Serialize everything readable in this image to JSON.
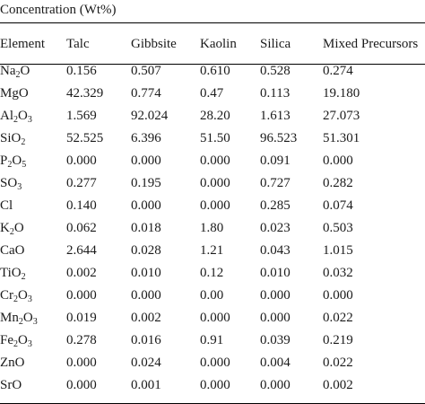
{
  "caption": "Concentration (Wt%)",
  "columns": [
    "Element",
    "Talc",
    "Gibbsite",
    "Kaolin",
    "Silica",
    "Mixed Precursors"
  ],
  "rows": [
    {
      "element": [
        [
          "Na",
          ""
        ],
        [
          "2",
          "sub"
        ],
        [
          "O",
          ""
        ]
      ],
      "values": [
        "0.156",
        "0.507",
        "0.610",
        "0.528",
        "0.274"
      ]
    },
    {
      "element": [
        [
          "MgO",
          ""
        ]
      ],
      "values": [
        "42.329",
        "0.774",
        "0.47",
        "0.113",
        "19.180"
      ]
    },
    {
      "element": [
        [
          "Al",
          ""
        ],
        [
          "2",
          "sub"
        ],
        [
          "O",
          ""
        ],
        [
          "3",
          "sub"
        ]
      ],
      "values": [
        "1.569",
        "92.024",
        "28.20",
        "1.613",
        "27.073"
      ]
    },
    {
      "element": [
        [
          "SiO",
          ""
        ],
        [
          "2",
          "sub"
        ]
      ],
      "values": [
        "52.525",
        "6.396",
        "51.50",
        "96.523",
        "51.301"
      ]
    },
    {
      "element": [
        [
          "P",
          ""
        ],
        [
          "2",
          "sub"
        ],
        [
          "O",
          ""
        ],
        [
          "5",
          "sub"
        ]
      ],
      "values": [
        "0.000",
        "0.000",
        "0.000",
        "0.091",
        "0.000"
      ]
    },
    {
      "element": [
        [
          "SO",
          ""
        ],
        [
          "3",
          "sub"
        ]
      ],
      "values": [
        "0.277",
        "0.195",
        "0.000",
        "0.727",
        "0.282"
      ]
    },
    {
      "element": [
        [
          "Cl",
          ""
        ]
      ],
      "values": [
        "0.140",
        "0.000",
        "0.000",
        "0.285",
        "0.074"
      ]
    },
    {
      "element": [
        [
          "K",
          ""
        ],
        [
          "2",
          "sub"
        ],
        [
          "O",
          ""
        ]
      ],
      "values": [
        "0.062",
        "0.018",
        "1.80",
        "0.023",
        "0.503"
      ]
    },
    {
      "element": [
        [
          "CaO",
          ""
        ]
      ],
      "values": [
        "2.644",
        "0.028",
        "1.21",
        "0.043",
        "1.015"
      ]
    },
    {
      "element": [
        [
          "TiO",
          ""
        ],
        [
          "2",
          "sub"
        ]
      ],
      "values": [
        "0.002",
        "0.010",
        "0.12",
        "0.010",
        "0.032"
      ]
    },
    {
      "element": [
        [
          "Cr",
          ""
        ],
        [
          "2",
          "sub"
        ],
        [
          "O",
          ""
        ],
        [
          "3",
          "sub"
        ]
      ],
      "values": [
        "0.000",
        "0.000",
        "0.00",
        "0.000",
        "0.000"
      ]
    },
    {
      "element": [
        [
          "Mn",
          ""
        ],
        [
          "2",
          "sub"
        ],
        [
          "O",
          ""
        ],
        [
          "3",
          "sub"
        ]
      ],
      "values": [
        "0.019",
        "0.002",
        "0.000",
        "0.000",
        "0.022"
      ]
    },
    {
      "element": [
        [
          "Fe",
          ""
        ],
        [
          "2",
          "sub"
        ],
        [
          "O",
          ""
        ],
        [
          "3",
          "sub"
        ]
      ],
      "values": [
        "0.278",
        "0.016",
        "0.91",
        "0.039",
        "0.219"
      ]
    },
    {
      "element": [
        [
          "ZnO",
          ""
        ]
      ],
      "values": [
        "0.000",
        "0.024",
        "0.000",
        "0.004",
        "0.022"
      ]
    },
    {
      "element": [
        [
          "SrO",
          ""
        ]
      ],
      "values": [
        "0.000",
        "0.001",
        "0.000",
        "0.000",
        "0.002"
      ]
    }
  ]
}
